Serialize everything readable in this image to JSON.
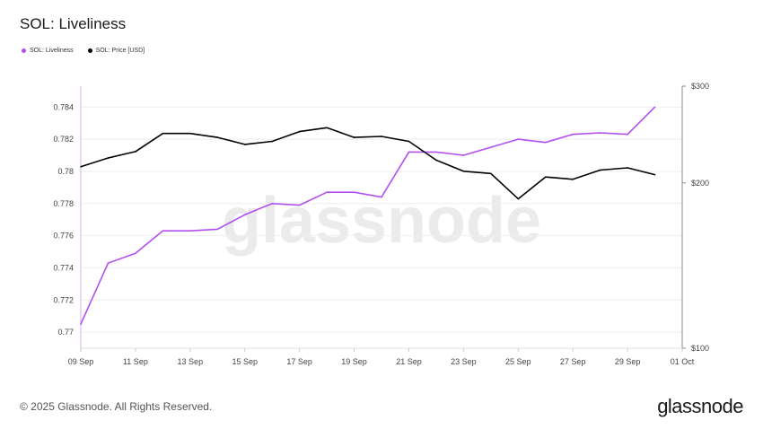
{
  "header": {
    "title": "SOL: Liveliness"
  },
  "legend": {
    "items": [
      {
        "label": "SOL: Liveliness",
        "color": "#b34ff0"
      },
      {
        "label": "SOL: Price [USD]",
        "color": "#000000"
      }
    ]
  },
  "watermark": "glassnode",
  "footer": {
    "copyright": "© 2025 Glassnode. All Rights Reserved.",
    "logo": "glassnode"
  },
  "chart_data": {
    "type": "line",
    "title": "SOL: Liveliness",
    "x": [
      "09 Sep",
      "10 Sep",
      "11 Sep",
      "12 Sep",
      "13 Sep",
      "14 Sep",
      "15 Sep",
      "16 Sep",
      "17 Sep",
      "18 Sep",
      "19 Sep",
      "20 Sep",
      "21 Sep",
      "22 Sep",
      "23 Sep",
      "24 Sep",
      "25 Sep",
      "26 Sep",
      "27 Sep",
      "28 Sep",
      "29 Sep",
      "30 Sep"
    ],
    "x_ticks": [
      "09 Sep",
      "11 Sep",
      "13 Sep",
      "15 Sep",
      "17 Sep",
      "19 Sep",
      "21 Sep",
      "23 Sep",
      "25 Sep",
      "27 Sep",
      "29 Sep",
      "01 Oct"
    ],
    "series": [
      {
        "name": "SOL: Liveliness",
        "axis": "left",
        "color": "#b34ff0",
        "values": [
          0.7705,
          0.7743,
          0.7749,
          0.7763,
          0.7763,
          0.7764,
          0.7773,
          0.778,
          0.7779,
          0.7787,
          0.7787,
          0.7784,
          0.7812,
          0.7812,
          0.781,
          0.7815,
          0.782,
          0.7818,
          0.7823,
          0.7824,
          0.7823,
          0.784
        ]
      },
      {
        "name": "SOL: Price [USD]",
        "axis": "right",
        "color": "#000000",
        "values": [
          214,
          222,
          228,
          246,
          246,
          242,
          235,
          238,
          248,
          252,
          242,
          243,
          238,
          220,
          210,
          208,
          187,
          205,
          203,
          211,
          213,
          207
        ]
      }
    ],
    "y_left": {
      "ticks": [
        0.77,
        0.772,
        0.774,
        0.776,
        0.778,
        0.78,
        0.782,
        0.784
      ],
      "tick_labels": [
        "0.77",
        "0.772",
        "0.774",
        "0.776",
        "0.778",
        "0.78",
        "0.782",
        "0.784"
      ],
      "range": [
        0.769,
        0.7853
      ]
    },
    "y_right": {
      "scale": "log",
      "ticks": [
        100,
        200,
        300
      ],
      "tick_labels": [
        "$100",
        "$200",
        "$300"
      ],
      "range": [
        100,
        300
      ]
    },
    "grid": true
  }
}
